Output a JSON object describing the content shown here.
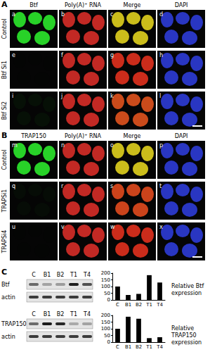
{
  "figure": {
    "panel_A": {
      "label": "A",
      "columns": [
        "Btf",
        "Poly(A)⁺ RNA",
        "Merge",
        "DAPI"
      ],
      "rows": [
        "Control",
        "Btf Si1",
        "Btf Si2"
      ],
      "letters": [
        "a",
        "b",
        "c",
        "d",
        "e",
        "f",
        "g",
        "h",
        "i",
        "j",
        "k",
        "l"
      ]
    },
    "panel_B": {
      "label": "B",
      "columns": [
        "TRAP150",
        "Poly(A)⁺ RNA",
        "Merge",
        "DAPI"
      ],
      "rows": [
        "Control",
        "TRAPSi1",
        "TRAPSi4"
      ],
      "letters": [
        "m",
        "n",
        "o",
        "p",
        "q",
        "r",
        "s",
        "t",
        "u",
        "v",
        "w",
        "x"
      ]
    },
    "panel_C": {
      "label": "C",
      "blots": [
        {
          "lanes": [
            "C",
            "B1",
            "B2",
            "T1",
            "T4"
          ],
          "bands": [
            "Btf",
            "actin"
          ]
        },
        {
          "lanes": [
            "C",
            "B1",
            "B2",
            "T1",
            "T4"
          ],
          "bands": [
            "TRAP150",
            "actin"
          ]
        }
      ]
    }
  },
  "chart_data": [
    {
      "type": "bar",
      "categories": [
        "C",
        "B1",
        "B2",
        "T1",
        "T4"
      ],
      "values": [
        100,
        37,
        45,
        185,
        130
      ],
      "color": "#000000",
      "ylim": [
        0,
        200
      ],
      "yticks": [
        0,
        50,
        100,
        150,
        200
      ],
      "y_label": "Relative Btf expression"
    },
    {
      "type": "bar",
      "categories": [
        "C",
        "B1",
        "B2",
        "T1",
        "T4"
      ],
      "values": [
        100,
        190,
        175,
        30,
        37
      ],
      "color": "#000000",
      "ylim": [
        0,
        200
      ],
      "yticks": [
        0,
        50,
        100,
        150,
        200
      ],
      "y_label": "Relative TRAP150 expression"
    }
  ]
}
